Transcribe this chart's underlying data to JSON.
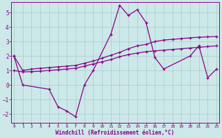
{
  "xlabel": "Windchill (Refroidissement éolien,°C)",
  "background_color": "#cce8e8",
  "grid_color": "#aacccc",
  "line_color": "#880088",
  "xlim_min": -0.3,
  "xlim_max": 23.3,
  "ylim_min": -2.6,
  "ylim_max": 5.7,
  "xticks": [
    0,
    1,
    2,
    3,
    4,
    5,
    6,
    7,
    8,
    9,
    10,
    11,
    12,
    13,
    14,
    15,
    16,
    17,
    18,
    19,
    20,
    21,
    22,
    23
  ],
  "yticks": [
    -2,
    -1,
    0,
    1,
    2,
    3,
    4,
    5
  ],
  "line1_x": [
    0,
    1,
    4,
    5,
    6,
    7,
    8,
    9,
    11,
    12,
    13,
    14,
    15,
    16,
    17,
    20,
    21,
    22,
    23
  ],
  "line1_y": [
    2.0,
    0.0,
    -0.3,
    -1.5,
    -1.8,
    -2.2,
    0.0,
    1.0,
    3.5,
    5.5,
    4.8,
    5.2,
    4.3,
    1.9,
    1.1,
    2.0,
    2.7,
    0.5,
    1.1
  ],
  "line2_x": [
    0,
    1,
    2,
    3,
    4,
    5,
    6,
    7,
    8,
    9,
    10,
    11,
    12,
    13,
    14,
    15,
    16,
    17,
    18,
    19,
    20,
    21,
    22,
    23
  ],
  "line2_y": [
    2.0,
    1.0,
    1.1,
    1.15,
    1.2,
    1.25,
    1.3,
    1.35,
    1.5,
    1.65,
    1.85,
    2.05,
    2.25,
    2.5,
    2.7,
    2.8,
    3.0,
    3.1,
    3.15,
    3.2,
    3.25,
    3.3,
    3.32,
    3.35
  ],
  "line3_x": [
    0,
    1,
    2,
    3,
    4,
    5,
    6,
    7,
    8,
    9,
    10,
    11,
    12,
    13,
    14,
    15,
    16,
    17,
    18,
    19,
    20,
    21,
    22,
    23
  ],
  "line3_y": [
    1.0,
    0.9,
    0.92,
    0.95,
    1.0,
    1.05,
    1.1,
    1.15,
    1.3,
    1.45,
    1.6,
    1.75,
    1.95,
    2.1,
    2.2,
    2.3,
    2.35,
    2.4,
    2.45,
    2.5,
    2.55,
    2.6,
    2.65,
    2.7
  ]
}
